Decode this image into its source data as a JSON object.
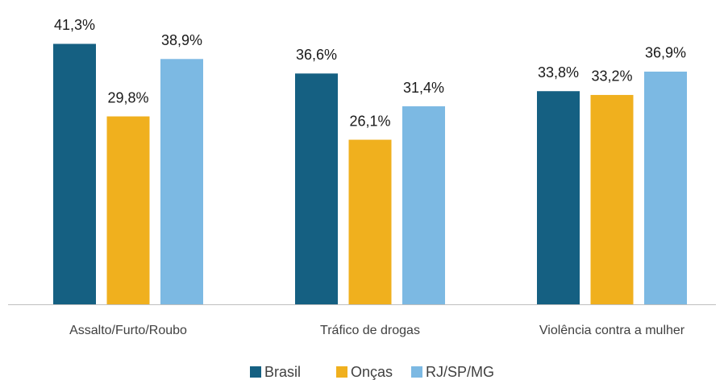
{
  "chart_data": {
    "type": "bar",
    "categories": [
      "Assalto/Furto/Roubo",
      "Tráfico de drogas",
      "Violência contra a mulher"
    ],
    "series": [
      {
        "name": "Brasil",
        "color": "#156082",
        "values": [
          41.3,
          36.6,
          33.8
        ],
        "value_labels": [
          "41,3%",
          "36,6%",
          "33,8%"
        ]
      },
      {
        "name": "Onças",
        "color": "#f0b01e",
        "values": [
          29.8,
          26.1,
          33.2
        ],
        "value_labels": [
          "29,8%",
          "26,1%",
          "33,2%"
        ]
      },
      {
        "name": "RJ/SP/MG",
        "color": "#7cb9e3",
        "values": [
          38.9,
          31.4,
          36.9
        ],
        "value_labels": [
          "38,9%",
          "31,4%",
          "36,9%"
        ]
      }
    ],
    "ylim": [
      0,
      48
    ],
    "legend": "bottom"
  }
}
